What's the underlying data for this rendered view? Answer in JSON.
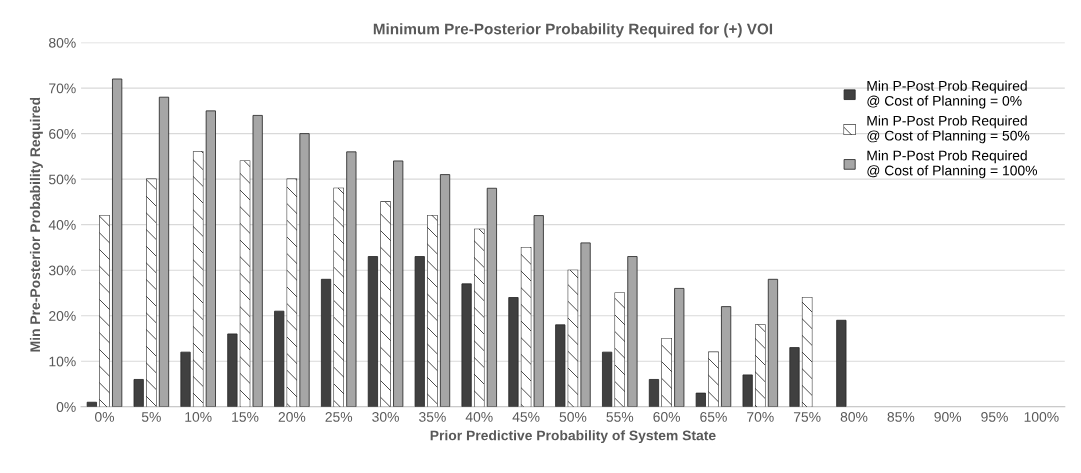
{
  "chart_data": {
    "type": "bar",
    "title": "Minimum Pre-Posterior Probability Required for (+) VOI",
    "xlabel": "Prior Predictive Probability of System State",
    "ylabel": "Min Pre-Posterior Probability Required",
    "categories": [
      "0%",
      "5%",
      "10%",
      "15%",
      "20%",
      "25%",
      "30%",
      "35%",
      "40%",
      "45%",
      "50%",
      "55%",
      "60%",
      "65%",
      "70%",
      "75%",
      "80%",
      "85%",
      "90%",
      "95%",
      "100%"
    ],
    "series": [
      {
        "name": "Min P-Post Prob Required\n@ Cost of Planning = 0%",
        "color": "#404040",
        "values": [
          1,
          6,
          12,
          16,
          21,
          28,
          33,
          33,
          27,
          24,
          18,
          12,
          6,
          3,
          7,
          13,
          19,
          null,
          null,
          null,
          null
        ]
      },
      {
        "name": "Min P-Post Prob Required\n@ Cost of Planning = 50%",
        "color": "#ffffff",
        "values": [
          42,
          50,
          56,
          54,
          50,
          48,
          45,
          42,
          39,
          35,
          30,
          25,
          15,
          12,
          18,
          24,
          null,
          null,
          null,
          null,
          null
        ]
      },
      {
        "name": "Min P-Post Prob Required\n@ Cost of Planning = 100%",
        "color": "#a6a6a6",
        "values": [
          72,
          68,
          65,
          64,
          60,
          56,
          54,
          51,
          48,
          42,
          36,
          33,
          26,
          22,
          28,
          null,
          null,
          null,
          null,
          null,
          null
        ]
      }
    ],
    "ylim": [
      0,
      80
    ],
    "yticks": [
      {
        "value": 0,
        "label": "0%"
      },
      {
        "value": 10,
        "label": "10%"
      },
      {
        "value": 20,
        "label": "20%"
      },
      {
        "value": 30,
        "label": "30%"
      },
      {
        "value": 40,
        "label": "40%"
      },
      {
        "value": 50,
        "label": "50%"
      },
      {
        "value": 60,
        "label": "60%"
      },
      {
        "value": 70,
        "label": "70%"
      },
      {
        "value": 80,
        "label": "80%"
      }
    ],
    "grid": "y",
    "legend": "top right"
  }
}
